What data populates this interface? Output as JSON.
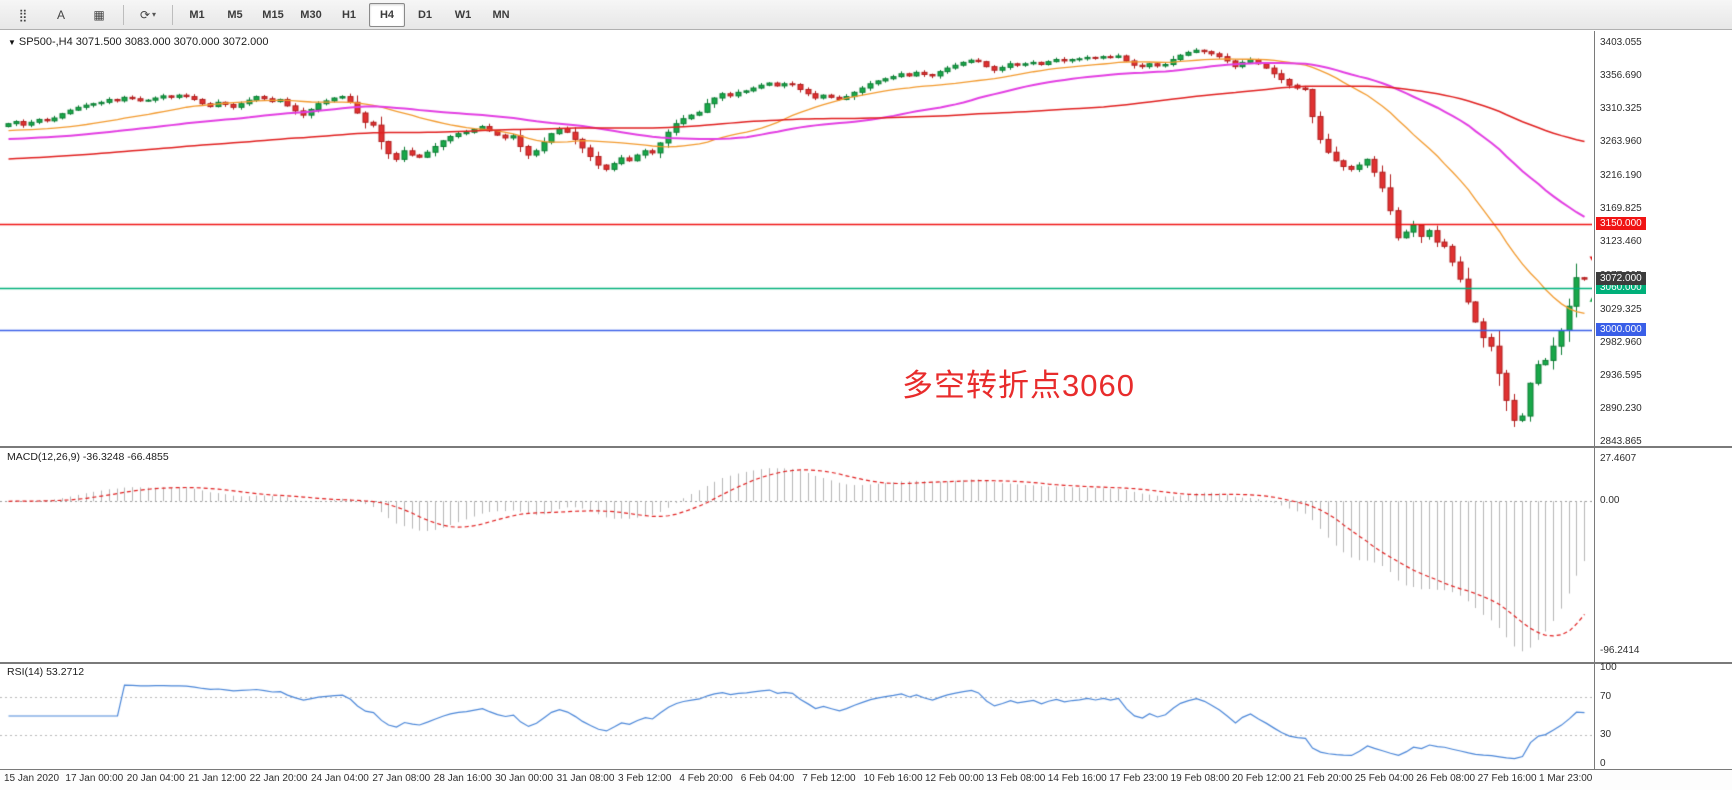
{
  "toolbar": {
    "icons": [
      {
        "name": "charts-grid-icon",
        "glyph": "⣿"
      },
      {
        "name": "text-tool-button",
        "glyph": "A"
      },
      {
        "name": "chart-window-icon",
        "glyph": "▦"
      },
      {
        "name": "indicators-dropdown-icon",
        "glyph": "⟳"
      }
    ],
    "dropdown_caret": "▾",
    "timeframes": [
      "M1",
      "M5",
      "M15",
      "M30",
      "H1",
      "H4",
      "D1",
      "W1",
      "MN"
    ],
    "active_timeframe": "H4"
  },
  "chart": {
    "collapse_triangle": "▼",
    "symbol_line": "SP500-,H4  3071.500 3083.000 3070.000 3072.000",
    "annotation": {
      "text": "多空转折点3060",
      "color": "#e82c2c"
    },
    "price_axis_labels": [
      "3403.055",
      "3356.690",
      "3310.325",
      "3263.960",
      "3216.190",
      "3169.825",
      "3123.460",
      "3077.095",
      "3029.325",
      "2982.960",
      "2936.595",
      "2890.230",
      "2843.865"
    ],
    "hlines": [
      {
        "price": 3150,
        "label": "3150.000",
        "color": "#f01414",
        "width": 1.5
      },
      {
        "price": 3060,
        "label": "3060.000",
        "color": "#00b07a",
        "width": 1.5
      },
      {
        "price": 3000,
        "label": "3000.000",
        "color": "#3a5fe8",
        "width": 1.5
      }
    ],
    "current_price_tag": {
      "price": 3072,
      "label": "3072.000",
      "color": "#3c3c3c"
    },
    "markers": [
      {
        "shape": "down",
        "price": 3098,
        "color": "#e01f1f"
      },
      {
        "shape": "up",
        "price": 3046,
        "color": "#19a849"
      }
    ]
  },
  "macd": {
    "label": "MACD(12,26,9) -36.3248 -66.4855",
    "axis_labels": [
      "27.4607",
      "0.00",
      "-96.2414"
    ],
    "histogram_color": "#b6b6b6",
    "signal_color": "#e01f1f"
  },
  "rsi": {
    "label": "RSI(14) 53.2712",
    "axis_labels": [
      "100",
      "70",
      "30",
      "0"
    ],
    "levels": [
      70,
      30
    ],
    "line_color": "#4a86d8"
  },
  "time_axis": [
    "15 Jan 2020",
    "17 Jan 00:00",
    "20 Jan 04:00",
    "21 Jan 12:00",
    "22 Jan 20:00",
    "24 Jan 04:00",
    "27 Jan 08:00",
    "28 Jan 16:00",
    "30 Jan 00:00",
    "31 Jan 08:00",
    "3 Feb 12:00",
    "4 Feb 20:00",
    "6 Feb 04:00",
    "7 Feb 12:00",
    "10 Feb 16:00",
    "12 Feb 00:00",
    "13 Feb 08:00",
    "14 Feb 16:00",
    "17 Feb 23:00",
    "19 Feb 08:00",
    "20 Feb 12:00",
    "21 Feb 20:00",
    "25 Feb 04:00",
    "26 Feb 08:00",
    "27 Feb 16:00",
    "1 Mar 23:00"
  ],
  "chart_data": {
    "type": "candlestick",
    "symbol": "SP500-",
    "timeframe": "H4",
    "title": "SP500-,H4",
    "ylim": [
      2838,
      3420
    ],
    "open_first": 3286,
    "closes": [
      3290,
      3293,
      3288,
      3292,
      3296,
      3294,
      3298,
      3304,
      3309,
      3313,
      3316,
      3318,
      3320,
      3324,
      3322,
      3327,
      3325,
      3322,
      3323,
      3326,
      3329,
      3327,
      3330,
      3328,
      3324,
      3318,
      3314,
      3320,
      3317,
      3313,
      3318,
      3323,
      3328,
      3325,
      3321,
      3324,
      3315,
      3308,
      3302,
      3310,
      3318,
      3322,
      3326,
      3328,
      3320,
      3305,
      3292,
      3288,
      3265,
      3248,
      3240,
      3252,
      3246,
      3243,
      3250,
      3258,
      3266,
      3272,
      3276,
      3278,
      3282,
      3286,
      3280,
      3274,
      3270,
      3273,
      3258,
      3246,
      3252,
      3264,
      3276,
      3283,
      3278,
      3268,
      3256,
      3244,
      3232,
      3226,
      3234,
      3242,
      3238,
      3246,
      3252,
      3249,
      3263,
      3278,
      3290,
      3297,
      3302,
      3306,
      3318,
      3326,
      3332,
      3329,
      3334,
      3336,
      3340,
      3344,
      3347,
      3343,
      3346,
      3345,
      3338,
      3332,
      3326,
      3330,
      3327,
      3324,
      3328,
      3334,
      3340,
      3346,
      3350,
      3353,
      3356,
      3360,
      3357,
      3362,
      3359,
      3357,
      3363,
      3368,
      3372,
      3376,
      3379,
      3377,
      3370,
      3365,
      3369,
      3374,
      3372,
      3374,
      3376,
      3373,
      3377,
      3380,
      3378,
      3380,
      3381,
      3383,
      3382,
      3384,
      3383,
      3385,
      3378,
      3372,
      3370,
      3374,
      3371,
      3373,
      3380,
      3386,
      3390,
      3393,
      3391,
      3388,
      3384,
      3378,
      3370,
      3376,
      3380,
      3374,
      3368,
      3360,
      3352,
      3344,
      3340,
      3338,
      3300,
      3268,
      3250,
      3238,
      3230,
      3226,
      3232,
      3240,
      3222,
      3200,
      3168,
      3130,
      3138,
      3148,
      3132,
      3140,
      3124,
      3118,
      3096,
      3072,
      3040,
      3012,
      2990,
      2978,
      2940,
      2902,
      2874,
      2880,
      2926,
      2952,
      2958,
      2978,
      3000,
      3034,
      3074,
      3072
    ],
    "colors": {
      "up": "#19a849",
      "up_border": "#0b7c33",
      "down": "#e03232",
      "down_border": "#b01d1d"
    },
    "ma": [
      {
        "name": "ma-fast",
        "period": 24,
        "seed": 3280,
        "color": "#f29a2e",
        "width": 1.3
      },
      {
        "name": "ma-mid",
        "period": 48,
        "seed": 3268,
        "color": "#e23ee2",
        "width": 2
      },
      {
        "name": "ma-slow",
        "period": 96,
        "seed": 3240,
        "color": "#e01f1f",
        "width": 1.5
      }
    ],
    "indicators": {
      "macd": [
        12,
        26,
        9
      ],
      "rsi": 14
    }
  }
}
